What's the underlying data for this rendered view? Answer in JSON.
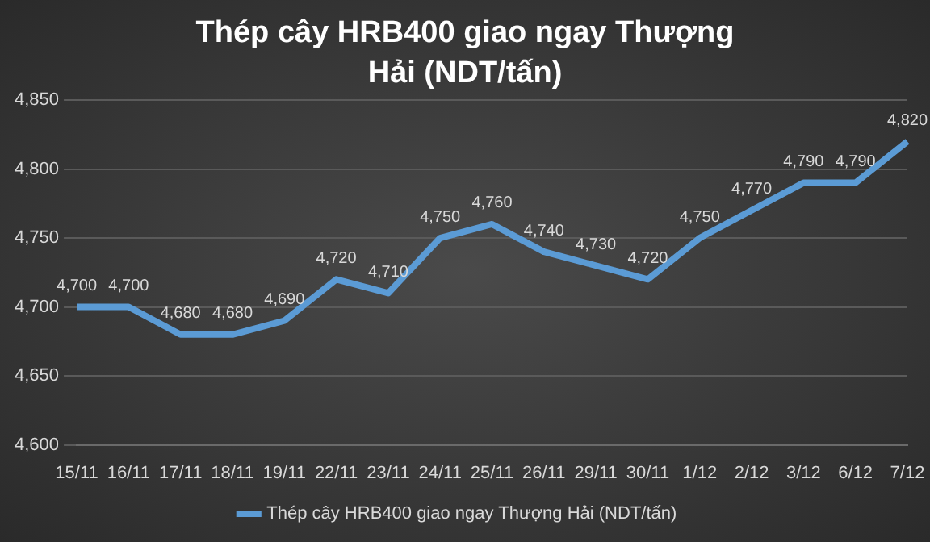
{
  "chart_data": {
    "type": "line",
    "title": "Thép cây HRB400 giao ngay Thượng Hải (NDT/tấn)",
    "categories": [
      "15/11",
      "16/11",
      "17/11",
      "18/11",
      "19/11",
      "22/11",
      "23/11",
      "24/11",
      "25/11",
      "26/11",
      "29/11",
      "30/11",
      "1/12",
      "2/12",
      "3/12",
      "6/12",
      "7/12"
    ],
    "series": [
      {
        "name": "Thép cây HRB400 giao ngay Thượng Hải (NDT/tấn)",
        "color": "#5b9bd5",
        "values": [
          4700,
          4700,
          4680,
          4680,
          4690,
          4720,
          4710,
          4750,
          4760,
          4740,
          4730,
          4720,
          4750,
          4770,
          4790,
          4790,
          4820
        ],
        "value_labels": [
          "4,700",
          "4,700",
          "4,680",
          "4,680",
          "4,690",
          "4,720",
          "4,710",
          "4,750",
          "4,760",
          "4,740",
          "4,730",
          "4,720",
          "4,750",
          "4,770",
          "4,790",
          "4,790",
          "4,820"
        ]
      }
    ],
    "ylim": [
      4600,
      4850
    ],
    "yticks": [
      {
        "value": 4600,
        "label": "4,600"
      },
      {
        "value": 4650,
        "label": "4,650"
      },
      {
        "value": 4700,
        "label": "4,700"
      },
      {
        "value": 4750,
        "label": "4,750"
      },
      {
        "value": 4800,
        "label": "4,800"
      },
      {
        "value": 4850,
        "label": "4,850"
      }
    ],
    "grid": "y",
    "legend": "bottom"
  }
}
